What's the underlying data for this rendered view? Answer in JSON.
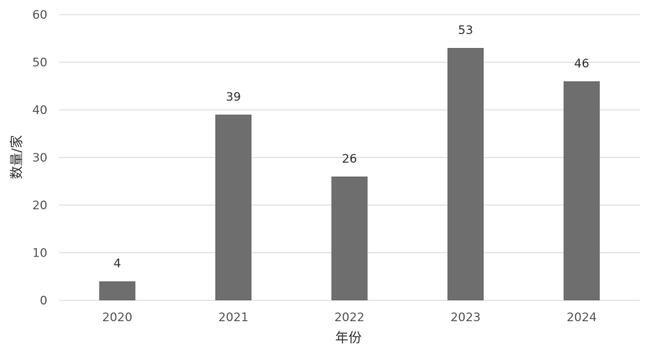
{
  "chart_data": {
    "type": "bar",
    "categories": [
      "2020",
      "2021",
      "2022",
      "2023",
      "2024"
    ],
    "values": [
      4,
      39,
      26,
      53,
      46
    ],
    "data_labels": [
      "4",
      "39",
      "26",
      "53",
      "46"
    ],
    "xlabel": "年份",
    "ylabel": "数量/家",
    "ylim": [
      0,
      60
    ],
    "yticks": [
      0,
      10,
      20,
      30,
      40,
      50,
      60
    ],
    "ytick_labels": [
      "0",
      "10",
      "20",
      "30",
      "40",
      "50",
      "60"
    ],
    "grid": true,
    "legend": "none",
    "colors": {
      "bar": "#6e6e6e",
      "grid": "#d9d9d9",
      "axis": "#d9d9d9"
    }
  }
}
